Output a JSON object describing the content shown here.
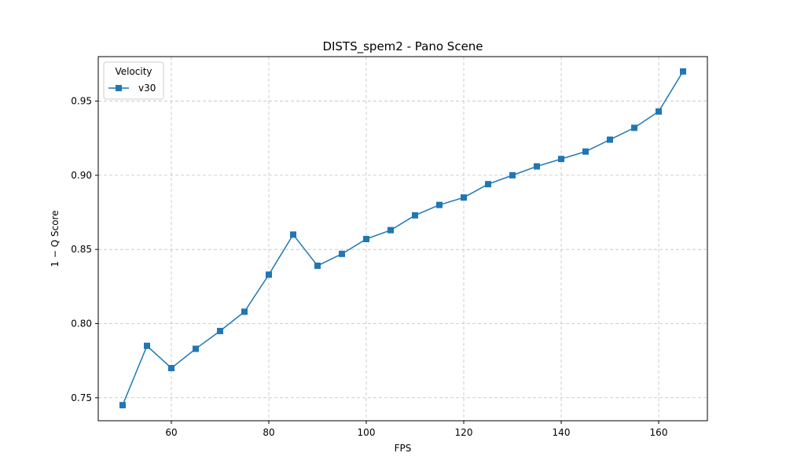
{
  "chart_data": {
    "type": "line",
    "title": "DISTS_spem2 - Pano Scene",
    "xlabel": "FPS",
    "ylabel": "1 − Q Score",
    "xlim": [
      45,
      170
    ],
    "ylim": [
      0.7345,
      0.98
    ],
    "x_ticks": [
      60,
      80,
      100,
      120,
      140,
      160
    ],
    "y_ticks": [
      0.75,
      0.8,
      0.85,
      0.9,
      0.95
    ],
    "grid": true,
    "legend": {
      "title": "Velocity",
      "placement": "top-left"
    },
    "series": [
      {
        "name": "v30",
        "color": "#1f77b4",
        "marker": "square",
        "x": [
          50,
          55,
          60,
          65,
          70,
          75,
          80,
          85,
          90,
          95,
          100,
          105,
          110,
          115,
          120,
          125,
          130,
          135,
          140,
          145,
          150,
          155,
          160,
          165
        ],
        "y": [
          0.745,
          0.785,
          0.77,
          0.783,
          0.795,
          0.808,
          0.833,
          0.86,
          0.839,
          0.847,
          0.857,
          0.863,
          0.873,
          0.88,
          0.885,
          0.894,
          0.9,
          0.906,
          0.911,
          0.916,
          0.924,
          0.932,
          0.943,
          0.97
        ]
      }
    ]
  }
}
